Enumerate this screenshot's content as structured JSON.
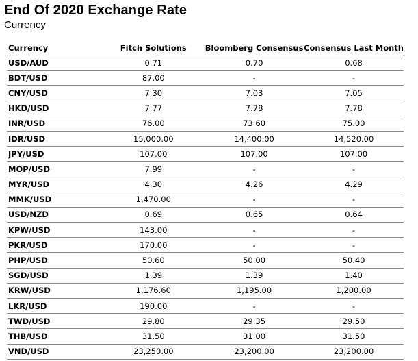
{
  "title": "End Of 2020 Exchange Rate",
  "subtitle": "Currency",
  "chart_data": {
    "type": "table",
    "columns": [
      "Currency",
      "Fitch Solutions",
      "Bloomberg Consensus",
      "Consensus Last Month"
    ],
    "rows": [
      [
        "USD/AUD",
        "0.71",
        "0.70",
        "0.68"
      ],
      [
        "BDT/USD",
        "87.00",
        "-",
        "-"
      ],
      [
        "CNY/USD",
        "7.30",
        "7.03",
        "7.05"
      ],
      [
        "HKD/USD",
        "7.77",
        "7.78",
        "7.78"
      ],
      [
        "INR/USD",
        "76.00",
        "73.60",
        "75.00"
      ],
      [
        "IDR/USD",
        "15,000.00",
        "14,400.00",
        "14,520.00"
      ],
      [
        "JPY/USD",
        "107.00",
        "107.00",
        "107.00"
      ],
      [
        "MOP/USD",
        "7.99",
        "-",
        "-"
      ],
      [
        "MYR/USD",
        "4.30",
        "4.26",
        "4.29"
      ],
      [
        "MMK/USD",
        "1,470.00",
        "-",
        "-"
      ],
      [
        "USD/NZD",
        "0.69",
        "0.65",
        "0.64"
      ],
      [
        "KPW/USD",
        "143.00",
        "-",
        "-"
      ],
      [
        "PKR/USD",
        "170.00",
        "-",
        "-"
      ],
      [
        "PHP/USD",
        "50.60",
        "50.00",
        "50.40"
      ],
      [
        "SGD/USD",
        "1.39",
        "1.39",
        "1.40"
      ],
      [
        "KRW/USD",
        "1,176.60",
        "1,195.00",
        "1,200.00"
      ],
      [
        "LKR/USD",
        "190.00",
        "-",
        "-"
      ],
      [
        "TWD/USD",
        "29.80",
        "29.35",
        "29.50"
      ],
      [
        "THB/USD",
        "31.50",
        "31.00",
        "31.50"
      ],
      [
        "VND/USD",
        "23,250.00",
        "23,200.00",
        "23,200.00"
      ]
    ]
  }
}
